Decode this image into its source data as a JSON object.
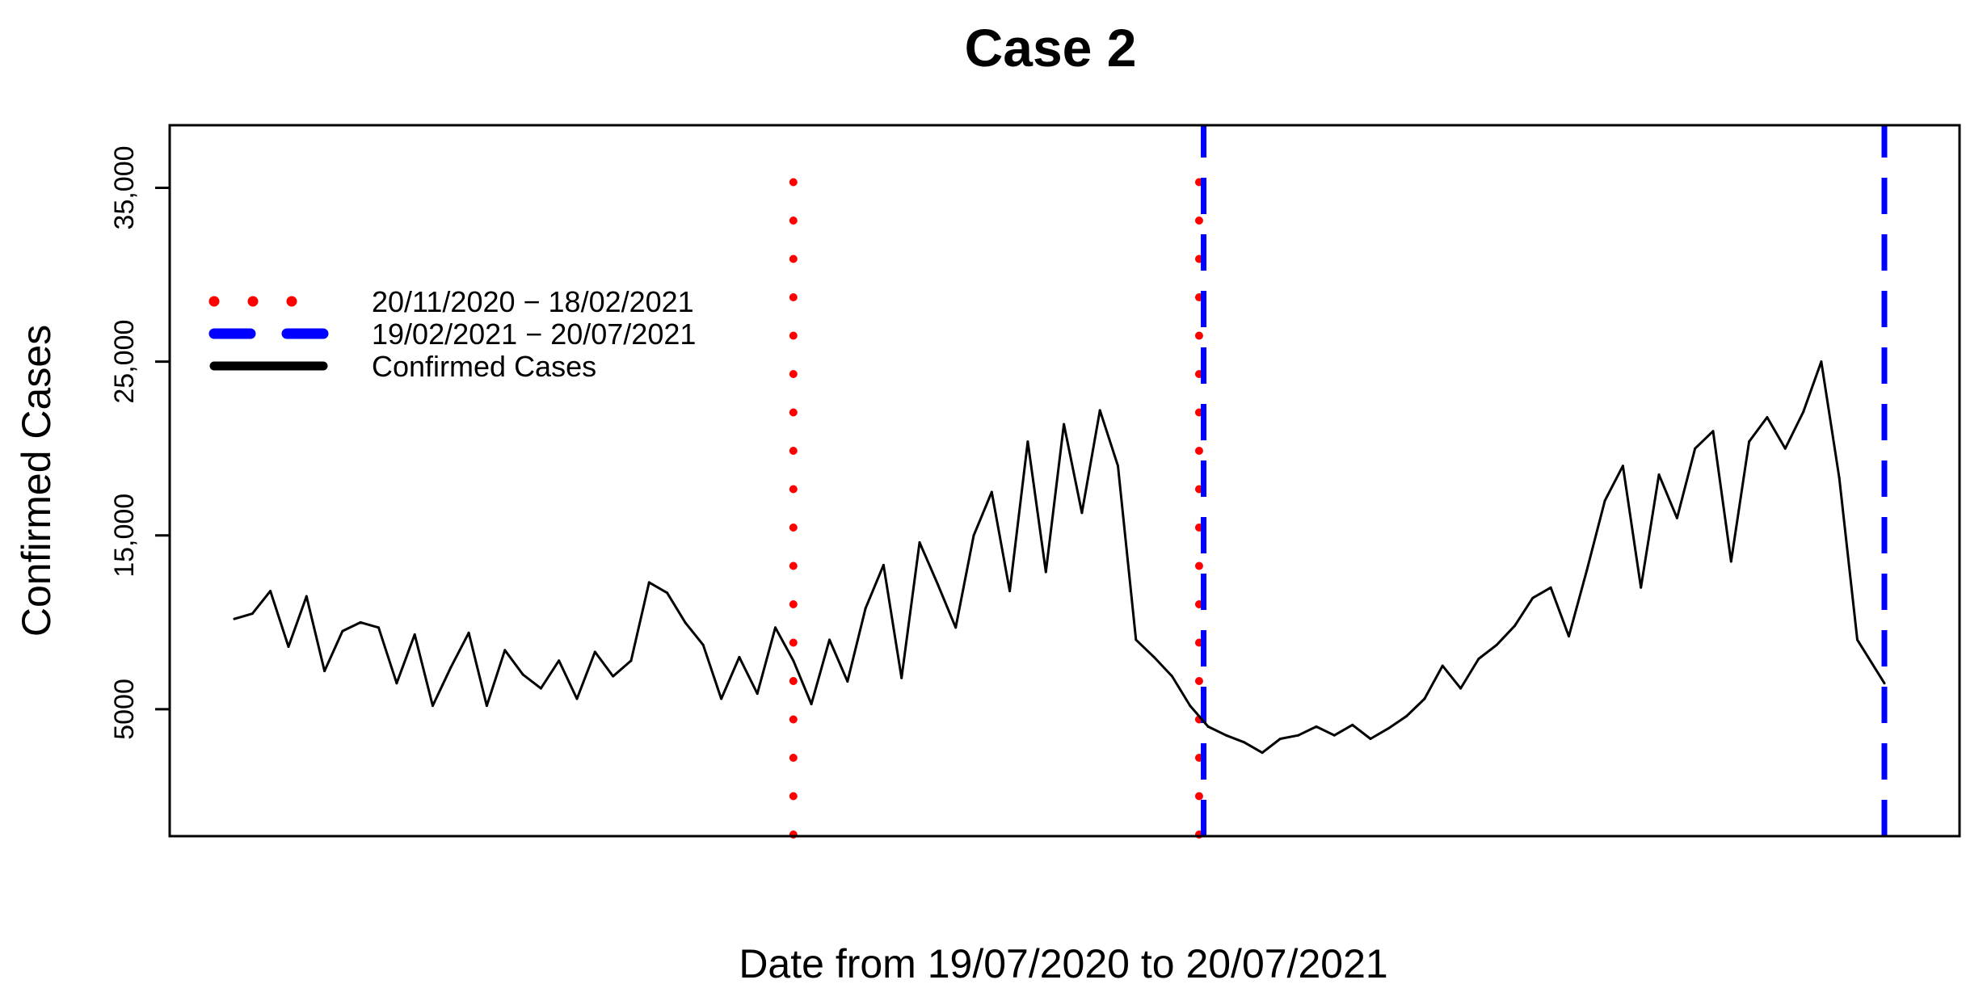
{
  "chart_data": {
    "type": "line",
    "title": "Case 2",
    "xlabel": "Date from 19/07/2020 to 20/07/2021",
    "ylabel": "Confirmed Cases",
    "x_start": "2020-07-19",
    "x_end": "2021-07-20",
    "ylim": [
      -2300,
      38600
    ],
    "yticks": [
      5000,
      15000,
      25000,
      35000
    ],
    "ytick_labels": [
      "5000",
      "15,000",
      "25,000",
      "35,000"
    ],
    "grid": false,
    "legend_position": "top-left",
    "legend": [
      {
        "label": "20/11/2020 − 18/02/2021",
        "color": "#ff0000",
        "style": "dotted"
      },
      {
        "label": "19/02/2021 − 20/07/2021",
        "color": "#0000ff",
        "style": "dashed"
      },
      {
        "label": "Confirmed Cases",
        "color": "#000000",
        "style": "solid"
      }
    ],
    "vertical_lines": [
      {
        "x": "2020-11-20",
        "series": "20/11/2020 − 18/02/2021",
        "color": "#ff0000",
        "style": "dotted"
      },
      {
        "x": "2021-02-18",
        "series": "20/11/2020 − 18/02/2021",
        "color": "#ff0000",
        "style": "dotted"
      },
      {
        "x": "2021-02-19",
        "series": "19/02/2021 − 20/07/2021",
        "color": "#0000ff",
        "style": "dashed"
      },
      {
        "x": "2021-07-20",
        "series": "19/02/2021 − 20/07/2021",
        "color": "#0000ff",
        "style": "dashed"
      }
    ],
    "series": [
      {
        "name": "Confirmed Cases",
        "color": "#000000",
        "points": [
          [
            "2020-07-19",
            10200
          ],
          [
            "2020-07-23",
            10500
          ],
          [
            "2020-07-27",
            11800
          ],
          [
            "2020-07-31",
            8600
          ],
          [
            "2020-08-04",
            11500
          ],
          [
            "2020-08-08",
            7200
          ],
          [
            "2020-08-12",
            9500
          ],
          [
            "2020-08-16",
            10000
          ],
          [
            "2020-08-20",
            9700
          ],
          [
            "2020-08-24",
            6500
          ],
          [
            "2020-08-28",
            9300
          ],
          [
            "2020-09-01",
            5200
          ],
          [
            "2020-09-05",
            7400
          ],
          [
            "2020-09-09",
            9400
          ],
          [
            "2020-09-13",
            5200
          ],
          [
            "2020-09-17",
            8400
          ],
          [
            "2020-09-21",
            7000
          ],
          [
            "2020-09-25",
            6200
          ],
          [
            "2020-09-29",
            7800
          ],
          [
            "2020-10-03",
            5600
          ],
          [
            "2020-10-07",
            8300
          ],
          [
            "2020-10-11",
            6900
          ],
          [
            "2020-10-15",
            7800
          ],
          [
            "2020-10-19",
            12300
          ],
          [
            "2020-10-23",
            11700
          ],
          [
            "2020-10-27",
            10000
          ],
          [
            "2020-10-31",
            8700
          ],
          [
            "2020-11-04",
            5600
          ],
          [
            "2020-11-08",
            8000
          ],
          [
            "2020-11-12",
            5900
          ],
          [
            "2020-11-16",
            9700
          ],
          [
            "2020-11-20",
            7800
          ],
          [
            "2020-11-24",
            5300
          ],
          [
            "2020-11-28",
            9000
          ],
          [
            "2020-12-02",
            6600
          ],
          [
            "2020-12-06",
            10800
          ],
          [
            "2020-12-10",
            13300
          ],
          [
            "2020-12-14",
            6800
          ],
          [
            "2020-12-18",
            14600
          ],
          [
            "2020-12-22",
            12200
          ],
          [
            "2020-12-26",
            9700
          ],
          [
            "2020-12-30",
            15000
          ],
          [
            "2021-01-03",
            17500
          ],
          [
            "2021-01-07",
            11800
          ],
          [
            "2021-01-11",
            20400
          ],
          [
            "2021-01-15",
            12900
          ],
          [
            "2021-01-19",
            21400
          ],
          [
            "2021-01-23",
            16300
          ],
          [
            "2021-01-27",
            22200
          ],
          [
            "2021-01-31",
            19000
          ],
          [
            "2021-02-04",
            9000
          ],
          [
            "2021-02-08",
            8000
          ],
          [
            "2021-02-12",
            6900
          ],
          [
            "2021-02-16",
            5200
          ],
          [
            "2021-02-20",
            4000
          ],
          [
            "2021-02-24",
            3500
          ],
          [
            "2021-02-28",
            3100
          ],
          [
            "2021-03-04",
            2500
          ],
          [
            "2021-03-08",
            3300
          ],
          [
            "2021-03-12",
            3500
          ],
          [
            "2021-03-16",
            4000
          ],
          [
            "2021-03-20",
            3500
          ],
          [
            "2021-03-24",
            4100
          ],
          [
            "2021-03-28",
            3300
          ],
          [
            "2021-04-01",
            3900
          ],
          [
            "2021-04-05",
            4600
          ],
          [
            "2021-04-09",
            5600
          ],
          [
            "2021-04-13",
            7500
          ],
          [
            "2021-04-17",
            6200
          ],
          [
            "2021-04-21",
            7900
          ],
          [
            "2021-04-25",
            8700
          ],
          [
            "2021-04-29",
            9800
          ],
          [
            "2021-05-03",
            11400
          ],
          [
            "2021-05-07",
            12000
          ],
          [
            "2021-05-11",
            9200
          ],
          [
            "2021-05-15",
            13000
          ],
          [
            "2021-05-19",
            17000
          ],
          [
            "2021-05-23",
            19000
          ],
          [
            "2021-05-27",
            12000
          ],
          [
            "2021-05-31",
            18500
          ],
          [
            "2021-06-04",
            16000
          ],
          [
            "2021-06-08",
            20000
          ],
          [
            "2021-06-12",
            21000
          ],
          [
            "2021-06-16",
            13500
          ],
          [
            "2021-06-20",
            20400
          ],
          [
            "2021-06-24",
            21800
          ],
          [
            "2021-06-28",
            20000
          ],
          [
            "2021-07-02",
            22100
          ],
          [
            "2021-07-06",
            25000
          ],
          [
            "2021-07-10",
            18300
          ],
          [
            "2021-07-14",
            9000
          ],
          [
            "2021-07-20",
            6500
          ]
        ]
      }
    ]
  }
}
